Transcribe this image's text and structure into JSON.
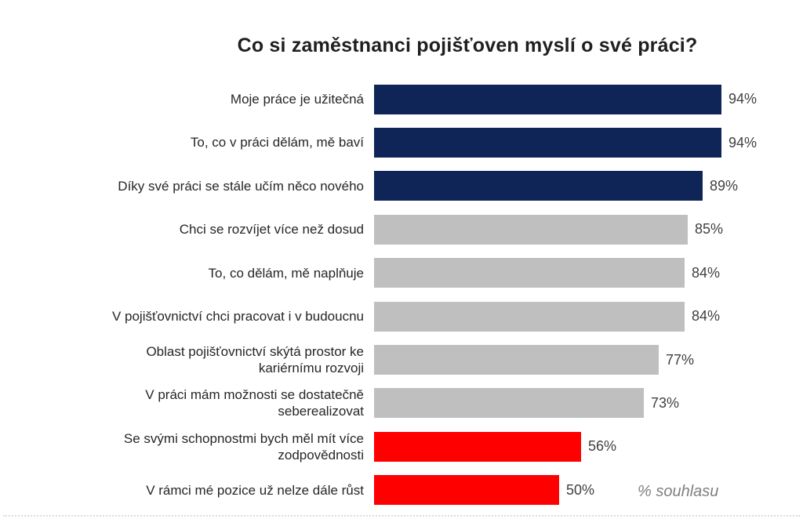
{
  "page": {
    "background": "#ffffff"
  },
  "chart_data": {
    "type": "bar",
    "orientation": "horizontal",
    "title": "Co si zaměstnanci pojišťoven myslí o své práci?",
    "note": "% souhlasu",
    "unit": "%",
    "xlim": [
      0,
      100
    ],
    "grid": false,
    "value_labels_shown": true,
    "categories": [
      "Moje práce je užitečná",
      "To, co v práci dělám, mě baví",
      "Díky své práci se stále učím něco nového",
      "Chci se rozvíjet více než dosud",
      "To, co dělám, mě naplňuje",
      "V pojišťovnictví chci pracovat i v budoucnu",
      "Oblast pojišťovnictví skýtá prostor ke kariérnímu rozvoji",
      "V práci mám možnosti se dostatečně seberealizovat",
      "Se svými schopnostmi bych měl mít více zodpovědnosti",
      "V rámci mé pozice už nelze dále růst"
    ],
    "values": [
      94,
      94,
      89,
      85,
      84,
      84,
      77,
      73,
      56,
      50
    ],
    "value_labels": [
      "94%",
      "94%",
      "89%",
      "85%",
      "84%",
      "84%",
      "77%",
      "73%",
      "56%",
      "50%"
    ],
    "bar_colors": [
      "navy",
      "navy",
      "navy",
      "gray",
      "gray",
      "gray",
      "gray",
      "gray",
      "red",
      "red"
    ],
    "palette": {
      "navy": "#0F2557",
      "gray": "#BFBFBF",
      "red": "#FE0000"
    }
  }
}
